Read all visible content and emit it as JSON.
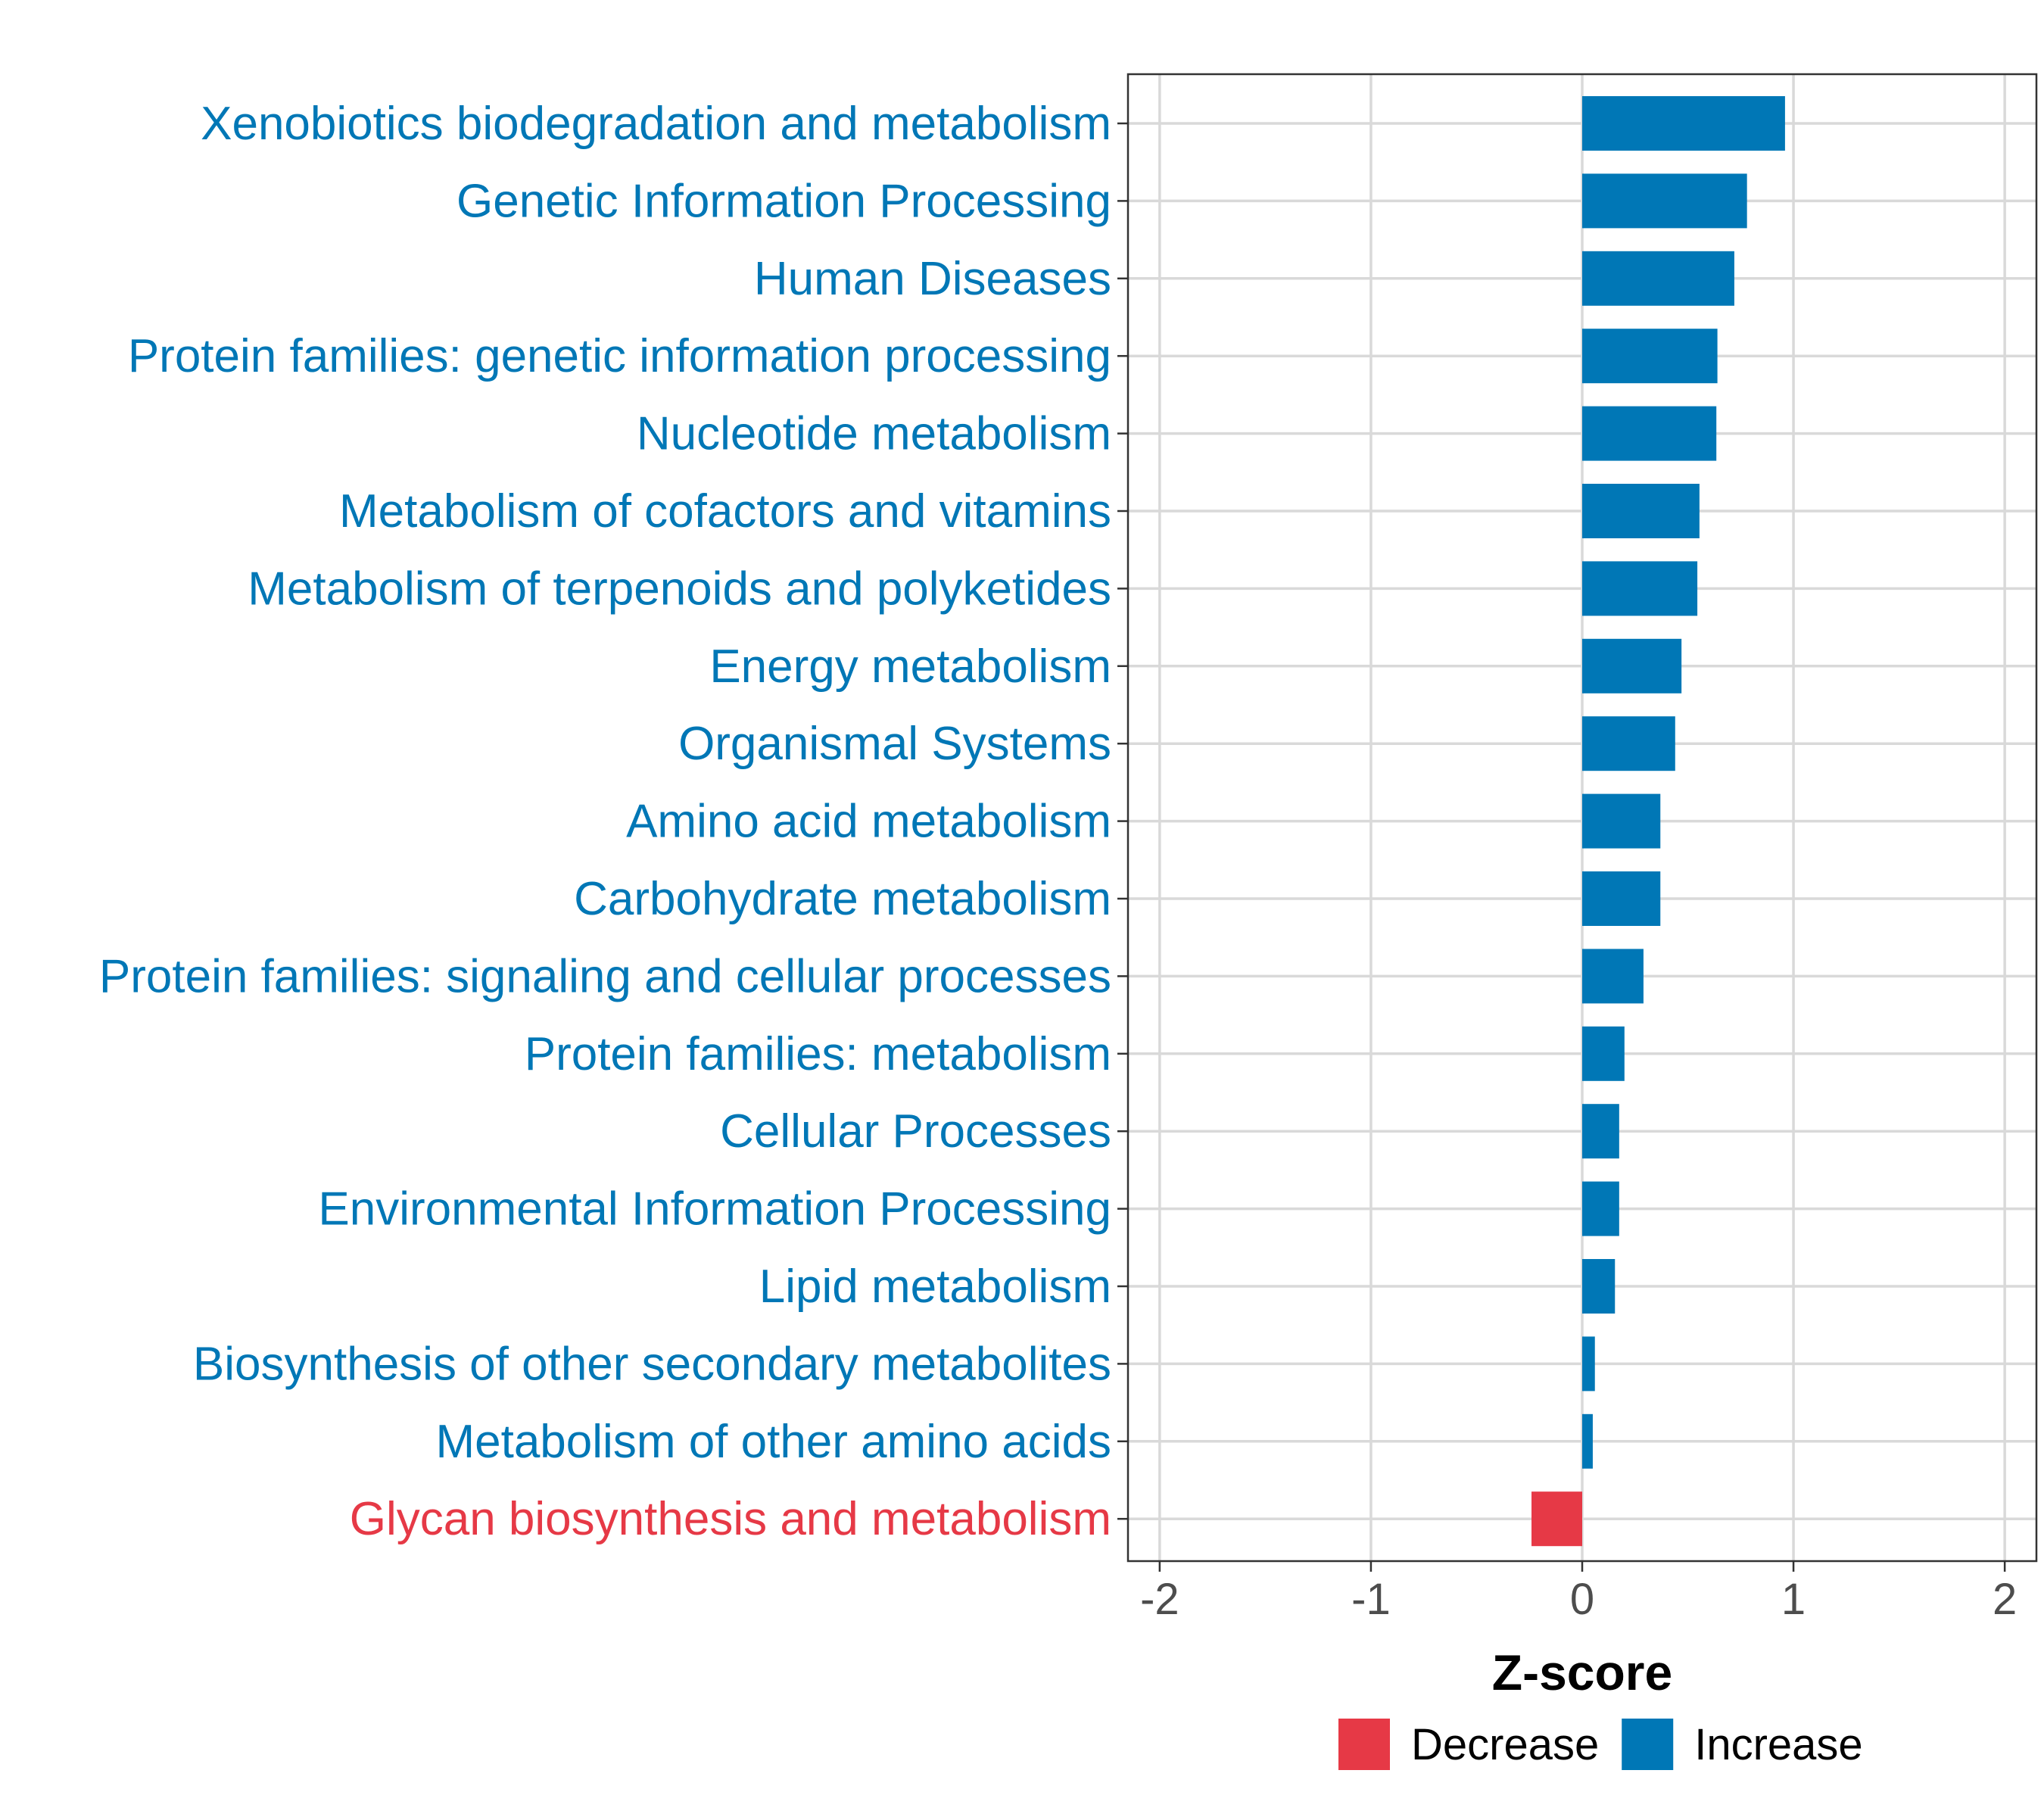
{
  "chart_data": {
    "type": "bar",
    "orientation": "horizontal",
    "title": "",
    "xlabel": "Z-score",
    "ylabel": "",
    "xlim": [
      -2.15,
      2.15
    ],
    "xticks": [
      -2,
      -1,
      0,
      1,
      2
    ],
    "xtick_labels": [
      "-2",
      "-1",
      "0",
      "1",
      "2"
    ],
    "grid": true,
    "legend_position": "bottom",
    "colors": {
      "Decrease": "#e63946",
      "Increase": "#0077b6"
    },
    "legend": [
      {
        "name": "Decrease",
        "color": "#e63946"
      },
      {
        "name": "Increase",
        "color": "#0077b6"
      }
    ],
    "categories": [
      "Xenobiotics biodegradation and metabolism",
      "Genetic Information Processing",
      "Human Diseases",
      "Protein families: genetic information processing",
      "Nucleotide metabolism",
      "Metabolism of cofactors and vitamins",
      "Metabolism of terpenoids and polyketides",
      "Energy metabolism",
      "Organismal Systems",
      "Amino acid metabolism",
      "Carbohydrate metabolism",
      "Protein families: signaling and cellular processes",
      "Protein families: metabolism",
      "Cellular Processes",
      "Environmental Information Processing",
      "Lipid metabolism",
      "Biosynthesis of other secondary metabolites",
      "Metabolism of other amino acids",
      "Glycan biosynthesis and metabolism"
    ],
    "values": [
      0.96,
      0.78,
      0.72,
      0.64,
      0.635,
      0.555,
      0.545,
      0.47,
      0.44,
      0.37,
      0.37,
      0.29,
      0.2,
      0.175,
      0.175,
      0.155,
      0.06,
      0.05,
      -0.24
    ],
    "groups": [
      "Increase",
      "Increase",
      "Increase",
      "Increase",
      "Increase",
      "Increase",
      "Increase",
      "Increase",
      "Increase",
      "Increase",
      "Increase",
      "Increase",
      "Increase",
      "Increase",
      "Increase",
      "Increase",
      "Increase",
      "Increase",
      "Decrease"
    ]
  }
}
